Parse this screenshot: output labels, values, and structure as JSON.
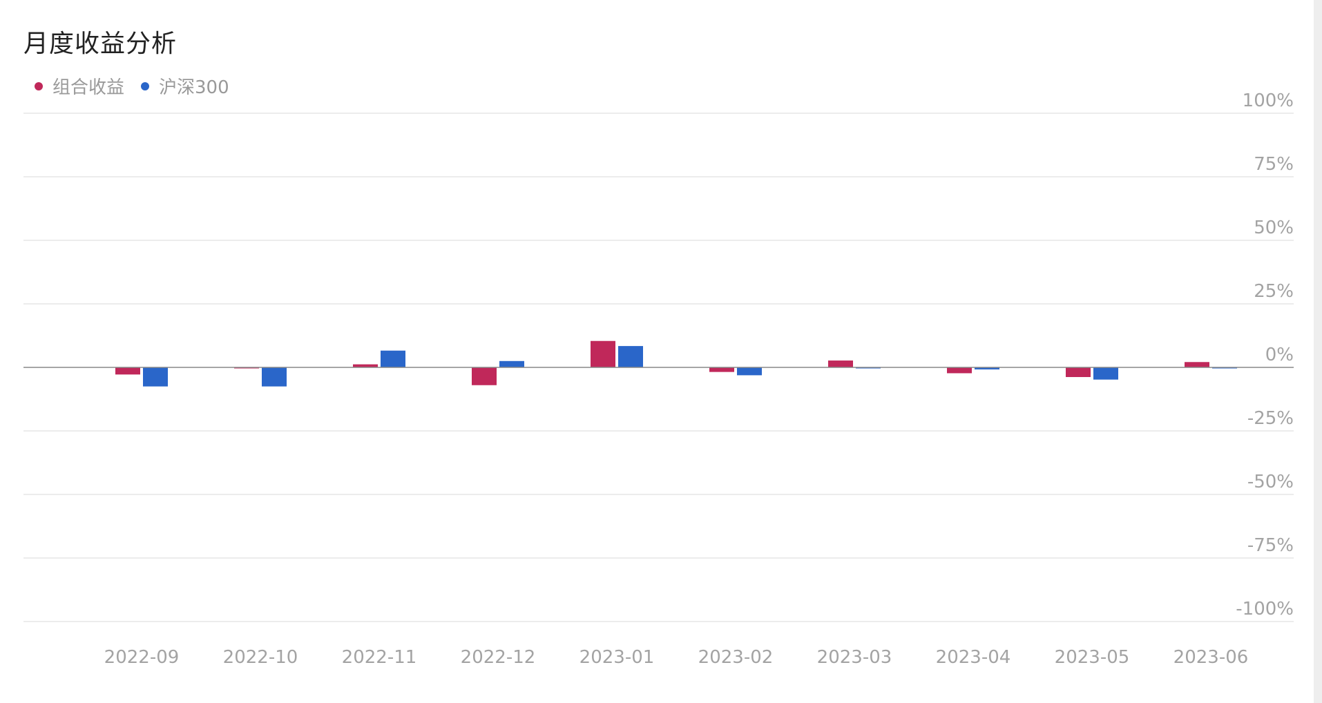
{
  "title": "月度收益分析",
  "colors": {
    "portfolio": "#c0285a",
    "benchmark": "#2a66c9",
    "grid": "#e6e6e6",
    "zero_line": "#888888",
    "tick_text": "#a3a3a3"
  },
  "legend": {
    "items": [
      {
        "label": "组合收益",
        "color": "#c0285a"
      },
      {
        "label": "沪深300",
        "color": "#2a66c9"
      }
    ]
  },
  "chart_data": {
    "type": "bar",
    "title": "月度收益分析",
    "xlabel": "",
    "ylabel": "",
    "categories": [
      "2022-09",
      "2022-10",
      "2022-11",
      "2022-12",
      "2023-01",
      "2023-02",
      "2023-03",
      "2023-04",
      "2023-05",
      "2023-06"
    ],
    "series": [
      {
        "name": "组合收益",
        "color": "#c0285a",
        "values": [
          -2.8,
          -0.2,
          1.2,
          -7.0,
          10.4,
          -1.8,
          2.7,
          -2.3,
          -3.8,
          2.1
        ]
      },
      {
        "name": "沪深300",
        "color": "#2a66c9",
        "values": [
          -7.5,
          -7.5,
          6.6,
          2.5,
          8.4,
          -3.1,
          -0.3,
          -0.8,
          -4.8,
          -0.4
        ]
      }
    ],
    "ylim": [
      -100,
      100
    ],
    "yticks": [
      100,
      75,
      50,
      25,
      0,
      -25,
      -50,
      -75,
      -100
    ],
    "ytick_labels": [
      "100%",
      "75%",
      "50%",
      "25%",
      "0%",
      "-25%",
      "-50%",
      "-75%",
      "-100%"
    ],
    "grid": true,
    "legend_position": "top-left",
    "y_axis_position": "right"
  }
}
